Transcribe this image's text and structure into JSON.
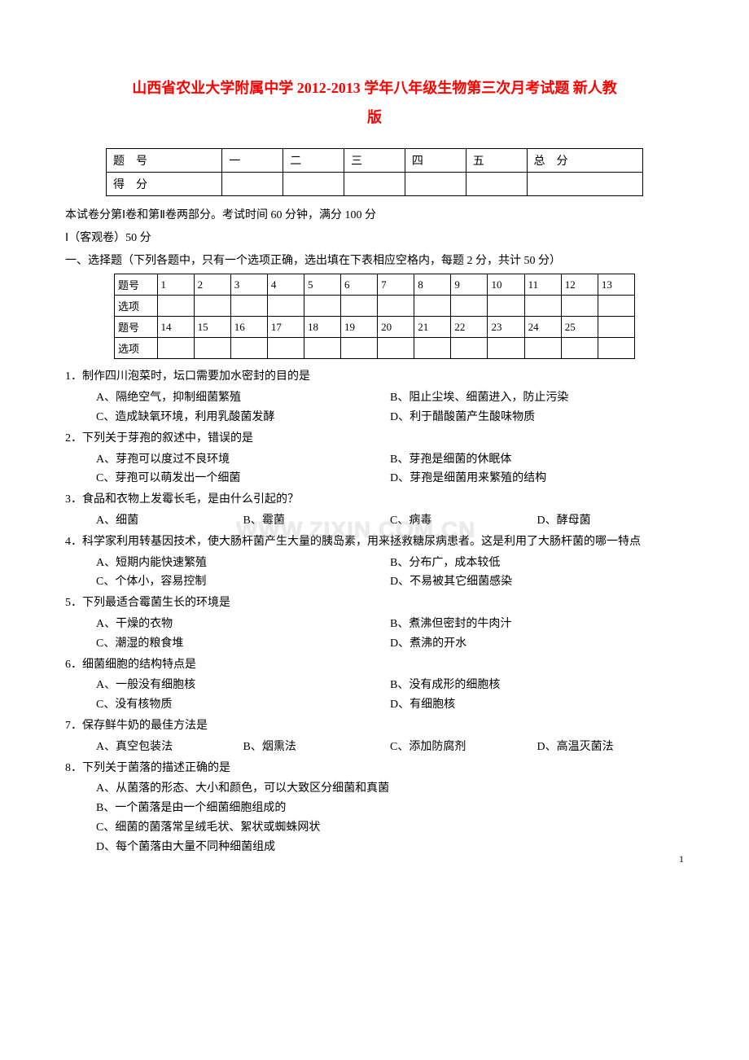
{
  "title_line1": "山西省农业大学附属中学 2012-2013 学年八年级生物第三次月考试题  新人教",
  "title_line2": "版",
  "score_header": [
    "题　号",
    "一",
    "二",
    "三",
    "四",
    "五",
    "总　分"
  ],
  "score_row_label": "得　分",
  "intro1": "本试卷分第Ⅰ卷和第Ⅱ卷两部分。考试时间 60 分钟，满分 100 分",
  "intro2": "Ⅰ（客观卷）50 分",
  "intro3": "一、选择题（下列各题中，只有一个选项正确，选出填在下表相应空格内，每题 2 分，共计 50 分）",
  "ans_row1_label": "题号",
  "ans_row1": [
    "1",
    "2",
    "3",
    "4",
    "5",
    "6",
    "7",
    "8",
    "9",
    "10",
    "11",
    "12",
    "13"
  ],
  "ans_row2_label": "选项",
  "ans_row3_label": "题号",
  "ans_row3": [
    "14",
    "15",
    "16",
    "17",
    "18",
    "19",
    "20",
    "21",
    "22",
    "23",
    "24",
    "25",
    ""
  ],
  "ans_row4_label": "选项",
  "q1": "1．制作四川泡菜时，坛口需要加水密封的目的是",
  "q1a": "A、隔绝空气，抑制细菌繁殖",
  "q1b": "B、阻止尘埃、细菌进入，防止污染",
  "q1c": "C、造成缺氧环境，利用乳酸菌发酵",
  "q1d": "D、利于醋酸菌产生酸味物质",
  "q2": "2．下列关于芽孢的叙述中，错误的是",
  "q2a": "A、芽孢可以度过不良环境",
  "q2b": "B、芽孢是细菌的休眠体",
  "q2c": "C、芽孢可以萌发出一个细菌",
  "q2d": "D、芽孢是细菌用来繁殖的结构",
  "q3": "3．食品和衣物上发霉长毛，是由什么引起的？",
  "q3a": "A、细菌",
  "q3b": "B、霉菌",
  "q3c": "C、病毒",
  "q3d": "D、酵母菌",
  "q4": "4．科学家利用转基因技术，使大肠杆菌产生大量的胰岛素，用来拯救糖尿病患者。这是利用了大肠杆菌的哪一特点",
  "q4a": "A、短期内能快速繁殖",
  "q4b": "B、分布广，成本较低",
  "q4c": "C、个体小，容易控制",
  "q4d": "D、不易被其它细菌感染",
  "q5": "5．下列最适合霉菌生长的环境是",
  "q5a": "A、干燥的衣物",
  "q5b": "B、煮沸但密封的牛肉汁",
  "q5c": "C、潮湿的粮食堆",
  "q5d": "D、煮沸的开水",
  "q6": "6．细菌细胞的结构特点是",
  "q6a": "A、一般没有细胞核",
  "q6b": "B、没有成形的细胞核",
  "q6c": "C、没有核物质",
  "q6d": "D、有细胞核",
  "q7": "7．保存鲜牛奶的最佳方法是",
  "q7a": "A、真空包装法",
  "q7b": "B、烟熏法",
  "q7c": "C、添加防腐剂",
  "q7d": "D、高温灭菌法",
  "q8": "8．下列关于菌落的描述正确的是",
  "q8a": "A、从菌落的形态、大小和颜色，可以大致区分细菌和真菌",
  "q8b": "B、一个菌落是由一个细菌细胞组成的",
  "q8c": "C、细菌的菌落常呈绒毛状、絮状或蜘蛛网状",
  "q8d": "D、每个菌落由大量不同种细菌组成",
  "watermark_text": "WWW.ZIXIN.COM.CN",
  "page_number": "1",
  "colors": {
    "title": "#ff0000",
    "text": "#000000",
    "background": "#ffffff",
    "watermark": "#d0d0d0"
  }
}
